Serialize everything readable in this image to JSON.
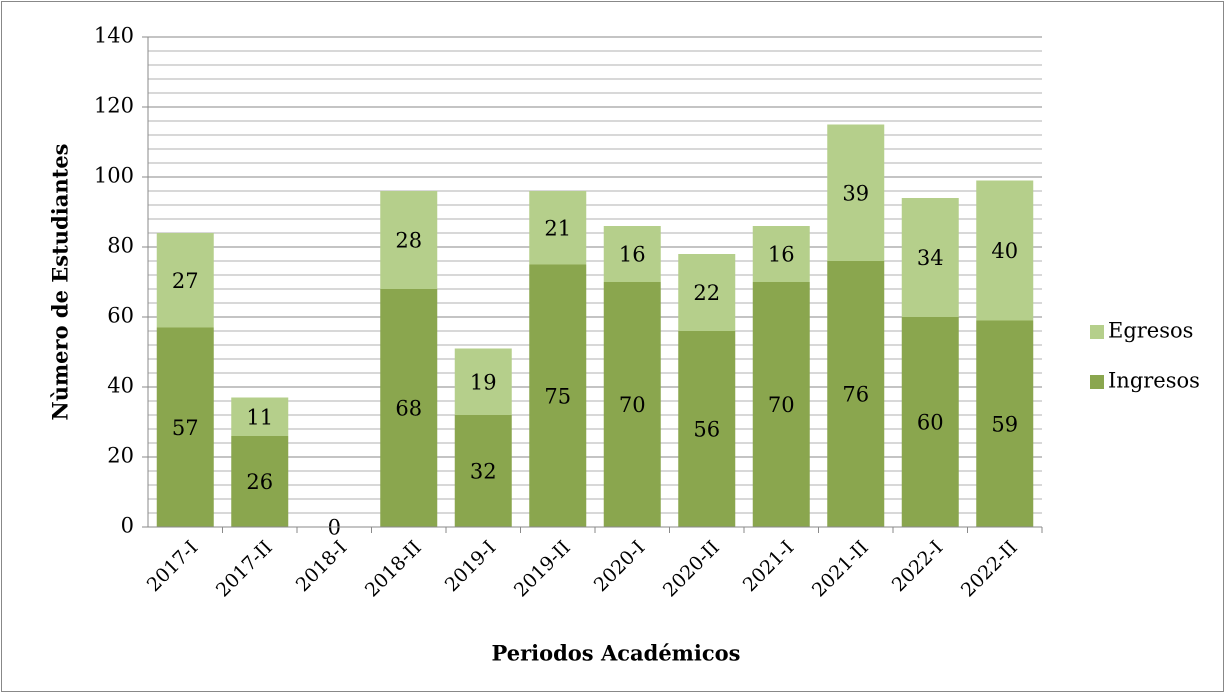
{
  "chart_data": {
    "type": "stacked_bar",
    "x_label": "Periodos Académicos",
    "y_label": "Nùmero de Estudiantes",
    "categories": [
      "2017-I",
      "2017-II",
      "2018-I",
      "2018-II",
      "2019-I",
      "2019-II",
      "2020-I",
      "2020-II",
      "2021-I",
      "2021-II",
      "2022-I",
      "2022-II"
    ],
    "series": [
      {
        "name": "Ingresos",
        "color": "#8aa64e",
        "values": [
          57,
          26,
          0,
          68,
          32,
          75,
          70,
          56,
          70,
          76,
          60,
          59
        ]
      },
      {
        "name": "Egresos",
        "color": "#b5cf8b",
        "values": [
          27,
          11,
          null,
          28,
          19,
          21,
          16,
          22,
          16,
          39,
          34,
          40
        ]
      }
    ],
    "ylim": [
      0,
      140
    ],
    "yticks": [
      0,
      20,
      40,
      60,
      80,
      100,
      120,
      140
    ],
    "yminorticks": [
      4,
      8,
      12,
      16,
      24,
      28,
      32,
      36,
      44,
      48,
      52,
      56,
      64,
      68,
      72,
      76,
      84,
      88,
      92,
      96,
      104,
      108,
      112,
      116,
      124,
      128,
      132,
      136
    ],
    "grid": true,
    "legend": "right"
  }
}
